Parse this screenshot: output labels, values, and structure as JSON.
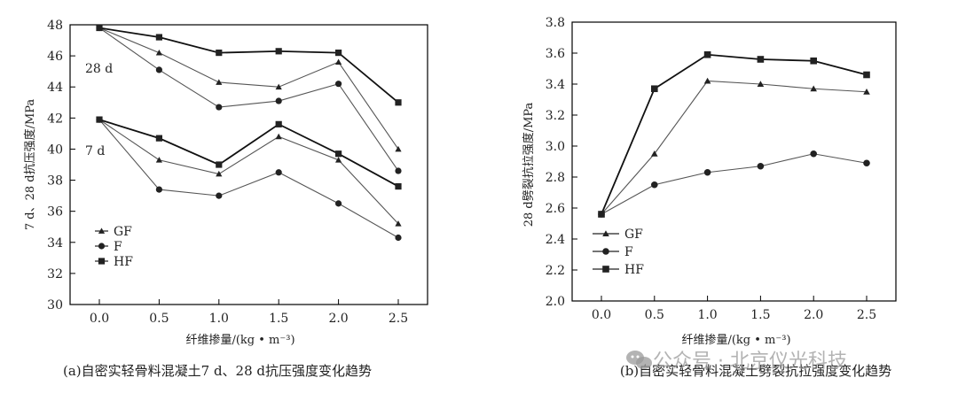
{
  "chart_data": [
    {
      "type": "line",
      "caption": "(a)自密实轻骨料混凝土7 d、28 d抗压强度变化趋势",
      "xlabel": "纤维掺量/(kg • m⁻³)",
      "ylabel": "7 d、28 d抗压强度/MPa",
      "x": [
        0.0,
        0.5,
        1.0,
        1.5,
        2.0,
        2.5
      ],
      "xtick_labels": [
        "0.0",
        "0.5",
        "1.0",
        "1.5",
        "2.0",
        "2.5"
      ],
      "ylim": [
        30,
        48
      ],
      "yticks": [
        30,
        32,
        34,
        36,
        38,
        40,
        42,
        44,
        46,
        48
      ],
      "annotations": [
        "28 d",
        "7 d"
      ],
      "legend": {
        "position": "bottom-left",
        "entries": [
          "GF",
          "F",
          "HF"
        ]
      },
      "series": [
        {
          "name": "GF",
          "group": "28 d",
          "marker": "triangle",
          "values": [
            47.8,
            46.2,
            44.3,
            44.0,
            45.6,
            40.0
          ]
        },
        {
          "name": "F",
          "group": "28 d",
          "marker": "circle",
          "values": [
            47.8,
            45.1,
            42.7,
            43.1,
            44.2,
            38.6
          ]
        },
        {
          "name": "HF",
          "group": "28 d",
          "marker": "square",
          "values": [
            47.8,
            47.2,
            46.2,
            46.3,
            46.2,
            43.0
          ]
        },
        {
          "name": "GF",
          "group": "7 d",
          "marker": "triangle",
          "values": [
            41.9,
            39.3,
            38.4,
            40.8,
            39.3,
            35.2
          ]
        },
        {
          "name": "F",
          "group": "7 d",
          "marker": "circle",
          "values": [
            41.9,
            37.4,
            37.0,
            38.5,
            36.5,
            34.3
          ]
        },
        {
          "name": "HF",
          "group": "7 d",
          "marker": "square",
          "values": [
            41.9,
            40.7,
            39.0,
            41.6,
            39.7,
            37.6
          ]
        }
      ]
    },
    {
      "type": "line",
      "caption": "(b)自密实轻骨料混凝土劈裂抗拉强度变化趋势",
      "xlabel": "纤维掺量/(kg • m⁻³)",
      "ylabel": "28 d劈裂抗拉强度/MPa",
      "x": [
        0.0,
        0.5,
        1.0,
        1.5,
        2.0,
        2.5
      ],
      "xtick_labels": [
        "0.0",
        "0.5",
        "1.0",
        "1.5",
        "2.0",
        "2.5"
      ],
      "ylim": [
        2.0,
        3.8
      ],
      "yticks": [
        2.0,
        2.2,
        2.4,
        2.6,
        2.8,
        3.0,
        3.2,
        3.4,
        3.6,
        3.8
      ],
      "ytick_labels": [
        "2.0",
        "2.2",
        "2.4",
        "2.6",
        "2.8",
        "3.0",
        "3.2",
        "3.4",
        "3.6",
        "3.8"
      ],
      "legend": {
        "position": "bottom-left",
        "entries": [
          "GF",
          "F",
          "HF"
        ]
      },
      "series": [
        {
          "name": "GF",
          "marker": "triangle",
          "values": [
            2.56,
            2.95,
            3.42,
            3.4,
            3.37,
            3.35
          ]
        },
        {
          "name": "F",
          "marker": "circle",
          "values": [
            2.56,
            2.75,
            2.83,
            2.87,
            2.95,
            2.89
          ]
        },
        {
          "name": "HF",
          "marker": "square",
          "values": [
            2.56,
            3.37,
            3.59,
            3.56,
            3.55,
            3.46
          ]
        }
      ]
    }
  ],
  "watermark": {
    "text": "公众号 · 北京仪光科技",
    "icon": "wechat-icon"
  },
  "colors": {
    "line": "#222222",
    "axis": "#000000"
  }
}
